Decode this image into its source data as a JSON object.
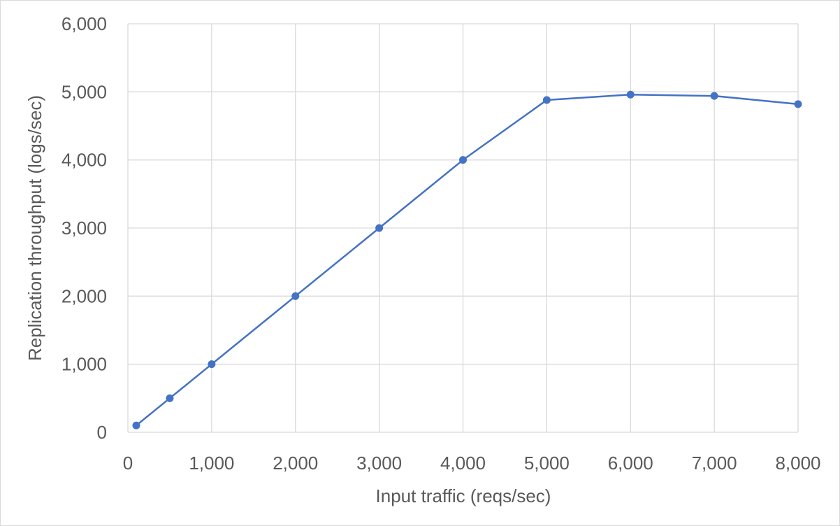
{
  "chart_data": {
    "type": "line",
    "title": "",
    "xlabel": "Input traffic (reqs/sec)",
    "ylabel": "Replication throughput  (logs/sec)",
    "xlim": [
      0,
      8000
    ],
    "ylim": [
      0,
      6000
    ],
    "x_ticks": [
      "0",
      "1,000",
      "2,000",
      "3,000",
      "4,000",
      "5,000",
      "6,000",
      "7,000",
      "8,000"
    ],
    "y_ticks": [
      "0",
      "1,000",
      "2,000",
      "3,000",
      "4,000",
      "5,000",
      "6,000"
    ],
    "x_tick_values": [
      0,
      1000,
      2000,
      3000,
      4000,
      5000,
      6000,
      7000,
      8000
    ],
    "y_tick_values": [
      0,
      1000,
      2000,
      3000,
      4000,
      5000,
      6000
    ],
    "grid": true,
    "legend": "none",
    "series": [
      {
        "color": "#4472c4",
        "x": [
          100,
          500,
          1000,
          2000,
          3000,
          4000,
          5000,
          6000,
          7000,
          8000
        ],
        "values": [
          100,
          500,
          1000,
          2000,
          3000,
          4000,
          4880,
          4960,
          4940,
          4820
        ]
      }
    ]
  }
}
